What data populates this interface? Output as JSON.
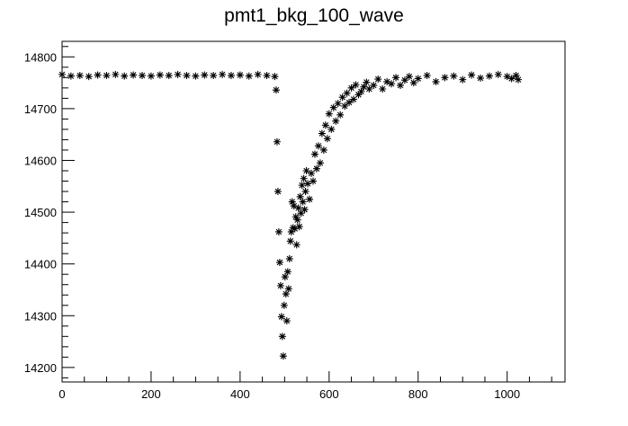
{
  "chart_data": {
    "type": "scatter",
    "title": "pmt1_bkg_100_wave",
    "xlabel": "",
    "ylabel": "",
    "xlim": [
      0,
      1130
    ],
    "ylim": [
      14172,
      14830
    ],
    "x_ticks": [
      0,
      200,
      400,
      600,
      800,
      1000
    ],
    "x_tick_labels": [
      "0",
      "200",
      "400",
      "600",
      "800",
      "1000"
    ],
    "y_ticks": [
      14200,
      14300,
      14400,
      14500,
      14600,
      14700,
      14800
    ],
    "y_tick_labels": [
      "14200",
      "14300",
      "14400",
      "14500",
      "14600",
      "14700",
      "14800"
    ],
    "marker": "asterisk",
    "grid": false,
    "legend": "none",
    "series": [
      {
        "x": [
          0,
          20,
          40,
          60,
          80,
          100,
          120,
          140,
          160,
          180,
          200,
          220,
          240,
          260,
          280,
          300,
          320,
          340,
          360,
          380,
          400,
          420,
          440,
          460,
          478,
          481,
          483,
          485,
          487,
          489,
          491,
          493,
          495,
          497,
          499,
          501,
          503,
          505,
          507,
          509,
          511,
          513,
          515,
          517,
          519,
          521,
          523,
          525,
          527,
          529,
          531,
          533,
          535,
          537,
          539,
          541,
          543,
          545,
          547,
          549,
          552,
          556,
          560,
          564,
          568,
          572,
          576,
          580,
          584,
          588,
          592,
          596,
          600,
          605,
          610,
          615,
          620,
          625,
          630,
          635,
          640,
          645,
          650,
          655,
          660,
          666,
          672,
          678,
          684,
          690,
          700,
          710,
          720,
          730,
          740,
          750,
          760,
          770,
          780,
          790,
          800,
          820,
          840,
          860,
          880,
          900,
          920,
          940,
          960,
          980,
          1000,
          1010,
          1020,
          1025
        ],
        "y": [
          14766,
          14763,
          14764,
          14762,
          14765,
          14764,
          14766,
          14763,
          14765,
          14764,
          14763,
          14765,
          14764,
          14766,
          14764,
          14763,
          14765,
          14764,
          14766,
          14764,
          14765,
          14763,
          14766,
          14764,
          14762,
          14736,
          14636,
          14540,
          14462,
          14403,
          14358,
          14298,
          14260,
          14222,
          14320,
          14375,
          14342,
          14290,
          14385,
          14352,
          14410,
          14444,
          14462,
          14520,
          14470,
          14512,
          14468,
          14491,
          14437,
          14485,
          14508,
          14472,
          14530,
          14498,
          14552,
          14520,
          14565,
          14505,
          14540,
          14580,
          14555,
          14525,
          14575,
          14560,
          14612,
          14584,
          14628,
          14595,
          14652,
          14620,
          14668,
          14642,
          14690,
          14660,
          14702,
          14676,
          14710,
          14688,
          14722,
          14705,
          14730,
          14712,
          14740,
          14718,
          14746,
          14727,
          14733,
          14742,
          14751,
          14738,
          14745,
          14757,
          14738,
          14752,
          14748,
          14760,
          14745,
          14755,
          14762,
          14750,
          14758,
          14764,
          14752,
          14760,
          14763,
          14756,
          14765,
          14759,
          14763,
          14766,
          14762,
          14758,
          14764,
          14756
        ]
      }
    ]
  }
}
